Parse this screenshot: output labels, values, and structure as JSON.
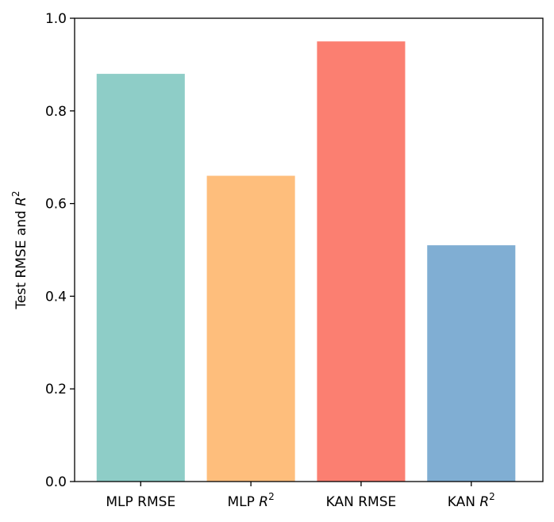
{
  "chart_data": {
    "type": "bar",
    "categories": [
      "MLP RMSE",
      "MLP R^2",
      "KAN RMSE",
      "KAN R^2"
    ],
    "category_labels": [
      {
        "main": "MLP RMSE",
        "var": "",
        "sup": ""
      },
      {
        "main": "MLP ",
        "var": "R",
        "sup": "2"
      },
      {
        "main": "KAN RMSE",
        "var": "",
        "sup": ""
      },
      {
        "main": "KAN ",
        "var": "R",
        "sup": "2"
      }
    ],
    "values": [
      0.88,
      0.66,
      0.95,
      0.51
    ],
    "colors": [
      "#8ecdc7",
      "#febe7c",
      "#fb7f71",
      "#80aed3"
    ],
    "ylabel": {
      "main": "Test RMSE and ",
      "var": "R",
      "sup": "2"
    },
    "xlabel": "",
    "title": "",
    "ylim": [
      0,
      1.0
    ],
    "yticks": [
      "0.0",
      "0.2",
      "0.4",
      "0.6",
      "0.8",
      "1.0"
    ],
    "grid": false
  }
}
